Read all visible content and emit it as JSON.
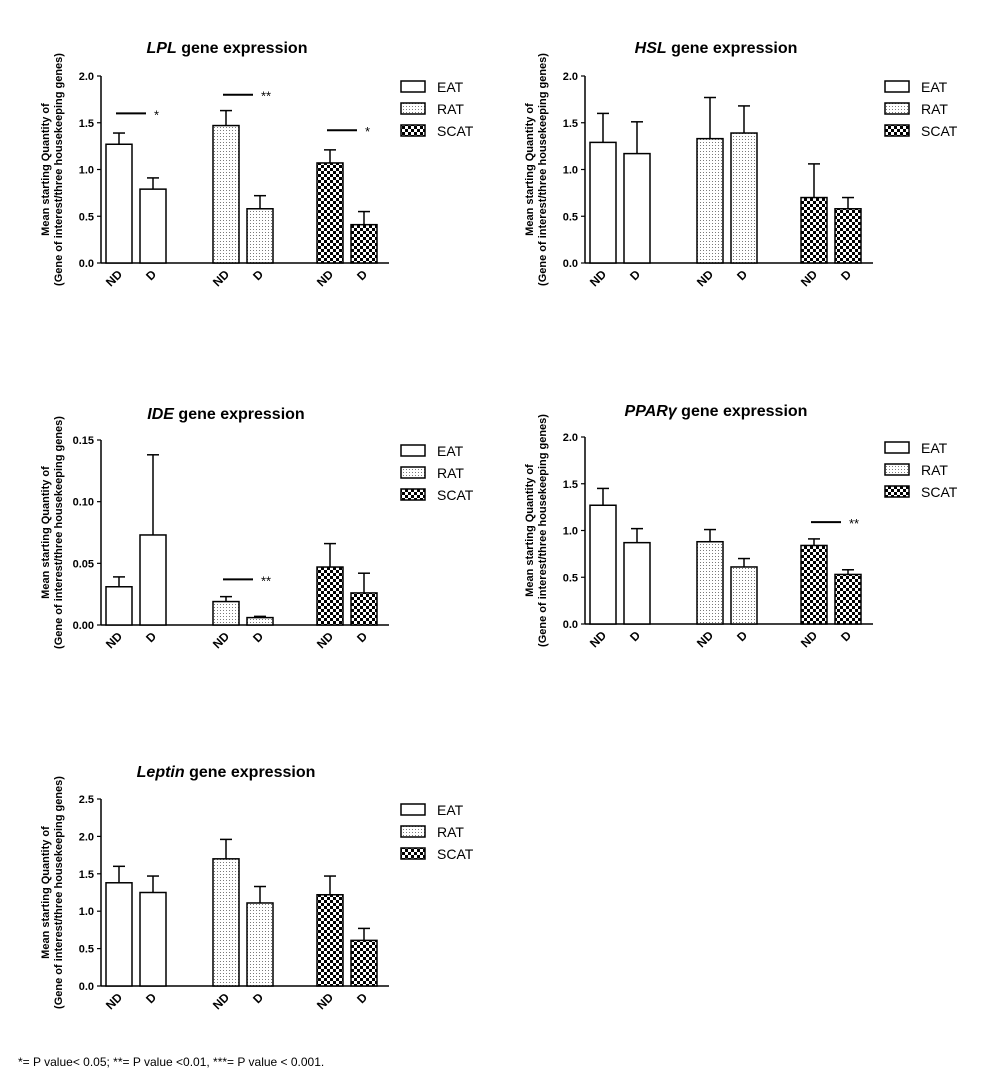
{
  "footnote": "*= P value< 0.05; **= P value <0.01, ***= P value < 0.001.",
  "ylabel_line1": "Mean starting Quantity of",
  "ylabel_line2": "(Gene of interest/three housekeeping genes)",
  "colors": {
    "stroke": "#000000",
    "fill_eat": "#ffffff",
    "fill_rat": "#f2f2f2"
  },
  "legend": [
    "EAT",
    "RAT",
    "SCAT"
  ],
  "chart_data": [
    {
      "type": "bar",
      "title_italic": "LPL",
      "title_rest": " gene expression",
      "categories": [
        "ND",
        "D",
        "ND",
        "D",
        "ND",
        "D"
      ],
      "groups": [
        "EAT",
        "EAT",
        "RAT",
        "RAT",
        "SCAT",
        "SCAT"
      ],
      "values": [
        1.27,
        0.79,
        1.47,
        0.58,
        1.07,
        0.41
      ],
      "errors": [
        0.12,
        0.12,
        0.16,
        0.14,
        0.14,
        0.14
      ],
      "ylim": [
        0,
        2.0
      ],
      "yticks": [
        "0.0",
        "0.5",
        "1.0",
        "1.5",
        "2.0"
      ],
      "ytick_values": [
        0,
        0.5,
        1.0,
        1.5,
        2.0
      ],
      "significance": [
        {
          "pair": [
            0,
            1
          ],
          "y": 1.6,
          "label": "*"
        },
        {
          "pair": [
            2,
            3
          ],
          "y": 1.8,
          "label": "**"
        },
        {
          "pair": [
            4,
            5
          ],
          "y": 1.42,
          "label": "*"
        }
      ]
    },
    {
      "type": "bar",
      "title_italic": "HSL",
      "title_rest": " gene expression",
      "categories": [
        "ND",
        "D",
        "ND",
        "D",
        "ND",
        "D"
      ],
      "groups": [
        "EAT",
        "EAT",
        "RAT",
        "RAT",
        "SCAT",
        "SCAT"
      ],
      "values": [
        1.29,
        1.17,
        1.33,
        1.39,
        0.7,
        0.58
      ],
      "errors": [
        0.31,
        0.34,
        0.44,
        0.29,
        0.36,
        0.12
      ],
      "ylim": [
        0,
        2.0
      ],
      "yticks": [
        "0.0",
        "0.5",
        "1.0",
        "1.5",
        "2.0"
      ],
      "ytick_values": [
        0,
        0.5,
        1.0,
        1.5,
        2.0
      ],
      "significance": []
    },
    {
      "type": "bar",
      "title_italic": "IDE",
      "title_rest": " gene expression",
      "categories": [
        "ND",
        "D",
        "ND",
        "D",
        "ND",
        "D"
      ],
      "groups": [
        "EAT",
        "EAT",
        "RAT",
        "RAT",
        "SCAT",
        "SCAT"
      ],
      "values": [
        0.031,
        0.073,
        0.019,
        0.006,
        0.047,
        0.026
      ],
      "errors": [
        0.008,
        0.065,
        0.004,
        0.001,
        0.019,
        0.016
      ],
      "ylim": [
        0,
        0.15
      ],
      "yticks": [
        "0.00",
        "0.05",
        "0.10",
        "0.15"
      ],
      "ytick_values": [
        0,
        0.05,
        0.1,
        0.15
      ],
      "significance": [
        {
          "pair": [
            2,
            3
          ],
          "y": 0.037,
          "label": "**"
        }
      ]
    },
    {
      "type": "bar",
      "title_italic": "PPARγ",
      "title_rest": " gene expression",
      "categories": [
        "ND",
        "D",
        "ND",
        "D",
        "ND",
        "D"
      ],
      "groups": [
        "EAT",
        "EAT",
        "RAT",
        "RAT",
        "SCAT",
        "SCAT"
      ],
      "values": [
        1.27,
        0.87,
        0.88,
        0.61,
        0.84,
        0.53
      ],
      "errors": [
        0.18,
        0.15,
        0.13,
        0.09,
        0.07,
        0.05
      ],
      "ylim": [
        0,
        2.0
      ],
      "yticks": [
        "0.0",
        "0.5",
        "1.0",
        "1.5",
        "2.0"
      ],
      "ytick_values": [
        0,
        0.5,
        1.0,
        1.5,
        2.0
      ],
      "significance": [
        {
          "pair": [
            4,
            5
          ],
          "y": 1.09,
          "label": "**"
        }
      ]
    },
    {
      "type": "bar",
      "title_italic": "Leptin",
      "title_rest": " gene expression",
      "categories": [
        "ND",
        "D",
        "ND",
        "D",
        "ND",
        "D"
      ],
      "groups": [
        "EAT",
        "EAT",
        "RAT",
        "RAT",
        "SCAT",
        "SCAT"
      ],
      "values": [
        1.38,
        1.25,
        1.7,
        1.11,
        1.22,
        0.61
      ],
      "errors": [
        0.22,
        0.22,
        0.26,
        0.22,
        0.25,
        0.16
      ],
      "ylim": [
        0,
        2.5
      ],
      "yticks": [
        "0.0",
        "0.5",
        "1.0",
        "1.5",
        "2.0",
        "2.5"
      ],
      "ytick_values": [
        0,
        0.5,
        1.0,
        1.5,
        2.0,
        2.5
      ],
      "significance": []
    }
  ]
}
